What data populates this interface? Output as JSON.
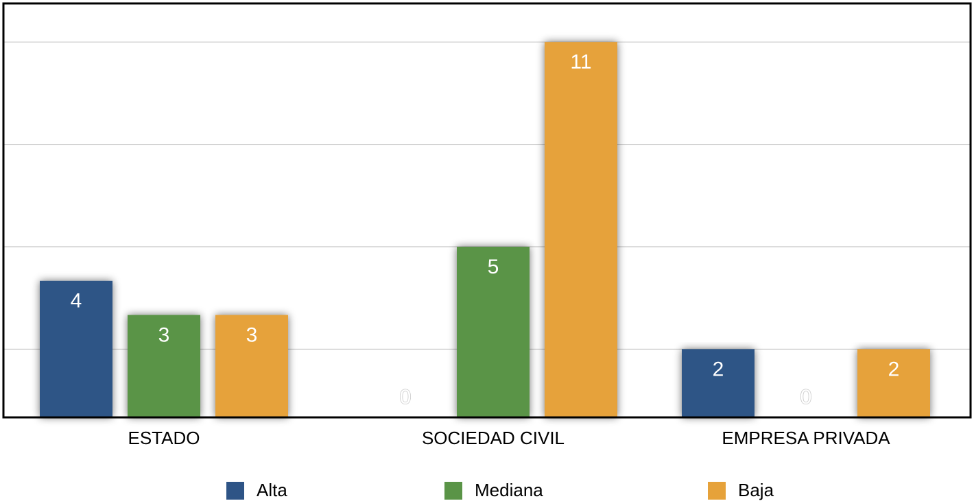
{
  "chart_data": {
    "type": "bar",
    "categories": [
      "ESTADO",
      "SOCIEDAD CIVIL",
      "EMPRESA PRIVADA"
    ],
    "series": [
      {
        "name": "Alta",
        "values": [
          4,
          0,
          2
        ],
        "color": "#2e5486"
      },
      {
        "name": "Mediana",
        "values": [
          3,
          5,
          0
        ],
        "color": "#5a9447"
      },
      {
        "name": "Baja",
        "values": [
          3,
          11,
          2
        ],
        "color": "#e6a23a"
      }
    ],
    "data_labels": [
      [
        "4",
        "0",
        "2"
      ],
      [
        "3",
        "5",
        "0"
      ],
      [
        "3",
        "11",
        "2"
      ]
    ],
    "title": "",
    "xlabel": "",
    "ylabel": "",
    "ylim": [
      0,
      12
    ],
    "y_gridlines": [
      2,
      5,
      8,
      11
    ],
    "grid": true,
    "show_y_tick_labels": false,
    "legend_position": "bottom"
  }
}
